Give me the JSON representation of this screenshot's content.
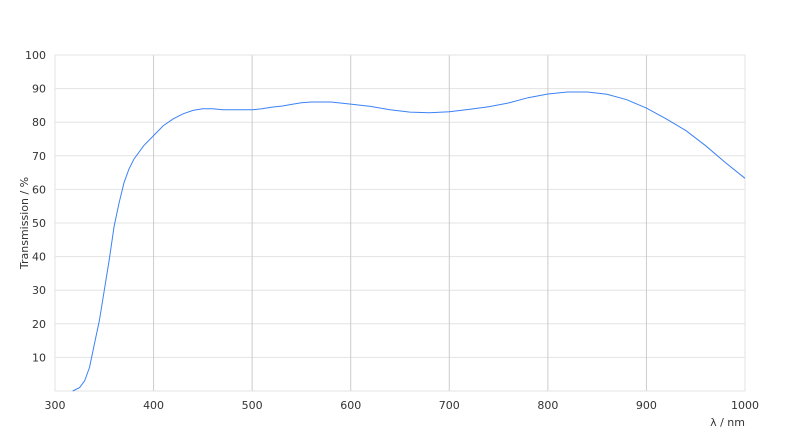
{
  "chart_data": {
    "type": "line",
    "xlabel": "λ / nm",
    "ylabel": "Transmission / %",
    "xlim": [
      300,
      1000
    ],
    "ylim": [
      0,
      100
    ],
    "xticks": [
      "300",
      "400",
      "500",
      "600",
      "700",
      "800",
      "900",
      "1000"
    ],
    "yticks": [
      "10",
      "20",
      "30",
      "40",
      "50",
      "60",
      "70",
      "80",
      "90",
      "100"
    ],
    "grid": true,
    "line_color": "#3b82f6",
    "series": [
      {
        "x": [
          318,
          325,
          330,
          335,
          340,
          345,
          350,
          355,
          360,
          365,
          370,
          375,
          380,
          390,
          400,
          410,
          420,
          430,
          440,
          450,
          460,
          470,
          500,
          510,
          520,
          530,
          540,
          550,
          560,
          580,
          600,
          620,
          640,
          660,
          680,
          700,
          720,
          740,
          760,
          780,
          800,
          820,
          840,
          860,
          880,
          900,
          920,
          940,
          960,
          980,
          1000
        ],
        "y": [
          0,
          1,
          3,
          7,
          14,
          21,
          30,
          39,
          49,
          56,
          62,
          66,
          69,
          73,
          76,
          79,
          81,
          82.5,
          83.5,
          84,
          84,
          83.7,
          83.7,
          84,
          84.5,
          84.8,
          85.3,
          85.8,
          86,
          86,
          85.4,
          84.7,
          83.7,
          83,
          82.8,
          83.1,
          83.8,
          84.6,
          85.7,
          87.3,
          88.4,
          89,
          89,
          88.3,
          86.7,
          84.2,
          81,
          77.5,
          73,
          68,
          63.3
        ]
      }
    ]
  }
}
